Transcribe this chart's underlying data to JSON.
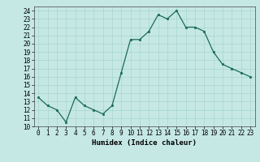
{
  "x": [
    0,
    1,
    2,
    3,
    4,
    5,
    6,
    7,
    8,
    9,
    10,
    11,
    12,
    13,
    14,
    15,
    16,
    17,
    18,
    19,
    20,
    21,
    22,
    23
  ],
  "y": [
    13.5,
    12.5,
    12.0,
    10.5,
    13.5,
    12.5,
    12.0,
    11.5,
    12.5,
    16.5,
    20.5,
    20.5,
    21.5,
    23.5,
    23.0,
    24.0,
    22.0,
    22.0,
    21.5,
    19.0,
    17.5,
    17.0,
    16.5,
    16.0
  ],
  "xlabel": "Humidex (Indice chaleur)",
  "xlim": [
    -0.5,
    23.5
  ],
  "ylim": [
    10,
    24.5
  ],
  "yticks": [
    10,
    11,
    12,
    13,
    14,
    15,
    16,
    17,
    18,
    19,
    20,
    21,
    22,
    23,
    24
  ],
  "xticks": [
    0,
    1,
    2,
    3,
    4,
    5,
    6,
    7,
    8,
    9,
    10,
    11,
    12,
    13,
    14,
    15,
    16,
    17,
    18,
    19,
    20,
    21,
    22,
    23
  ],
  "line_color": "#1a6b5a",
  "marker_color": "#1a6b5a",
  "bg_color": "#c5e8e5",
  "grid_color": "#a8d4d0",
  "label_fontsize": 6.5,
  "tick_fontsize": 5.5
}
